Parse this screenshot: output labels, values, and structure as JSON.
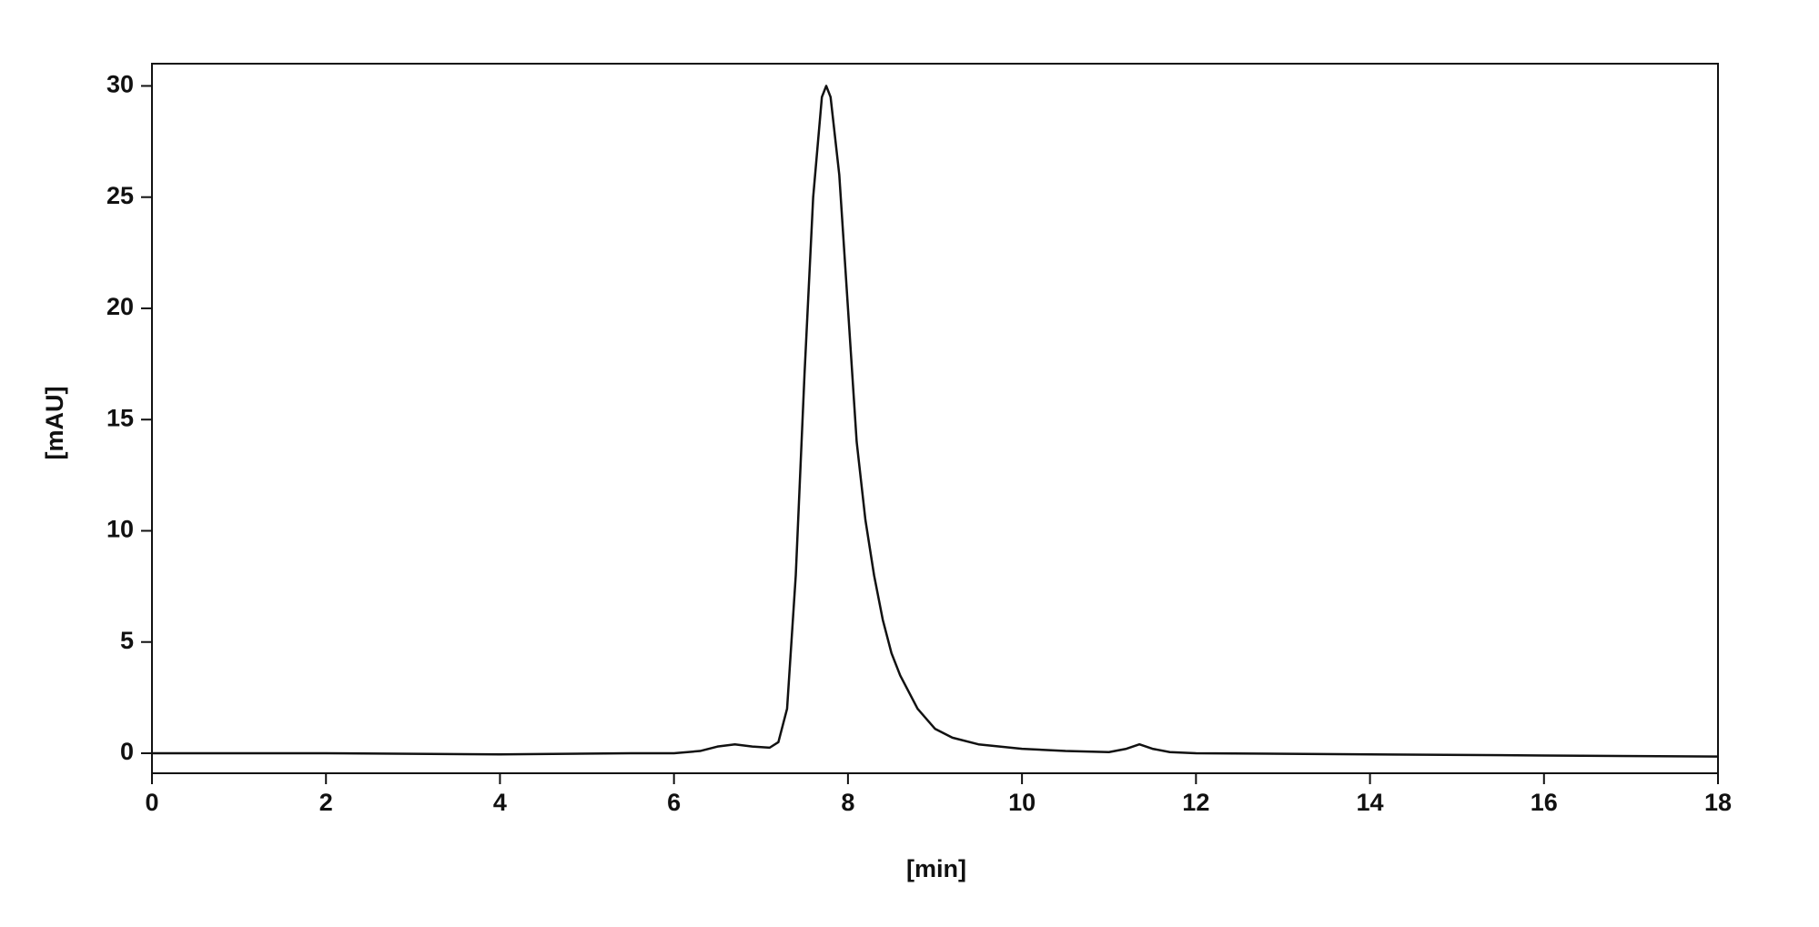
{
  "chart_data": {
    "type": "line",
    "xlabel": "[min]",
    "ylabel": "[mAU]",
    "x": [
      0,
      2,
      4,
      5.5,
      6,
      6.3,
      6.5,
      6.7,
      6.9,
      7.1,
      7.2,
      7.3,
      7.4,
      7.5,
      7.6,
      7.7,
      7.75,
      7.8,
      7.9,
      8.0,
      8.1,
      8.2,
      8.3,
      8.4,
      8.5,
      8.6,
      8.8,
      9.0,
      9.2,
      9.5,
      10,
      10.5,
      11,
      11.2,
      11.35,
      11.5,
      11.7,
      12,
      14,
      16,
      18
    ],
    "values": [
      0,
      0,
      -0.05,
      0,
      0,
      0.1,
      0.3,
      0.4,
      0.3,
      0.25,
      0.5,
      2,
      8,
      17,
      25,
      29.5,
      30,
      29.5,
      26,
      20,
      14,
      10.5,
      8,
      6,
      4.5,
      3.5,
      2,
      1.1,
      0.7,
      0.4,
      0.2,
      0.1,
      0.05,
      0.2,
      0.4,
      0.2,
      0.05,
      0,
      -0.05,
      -0.1,
      -0.15
    ],
    "color": "#111111",
    "xlim": [
      0,
      18
    ],
    "xticks": [
      0,
      2,
      4,
      6,
      8,
      10,
      12,
      14,
      16,
      18
    ],
    "ylim": [
      -0.9,
      31
    ],
    "yticks": [
      0,
      5,
      10,
      15,
      20,
      25,
      30
    ],
    "grid": false
  }
}
